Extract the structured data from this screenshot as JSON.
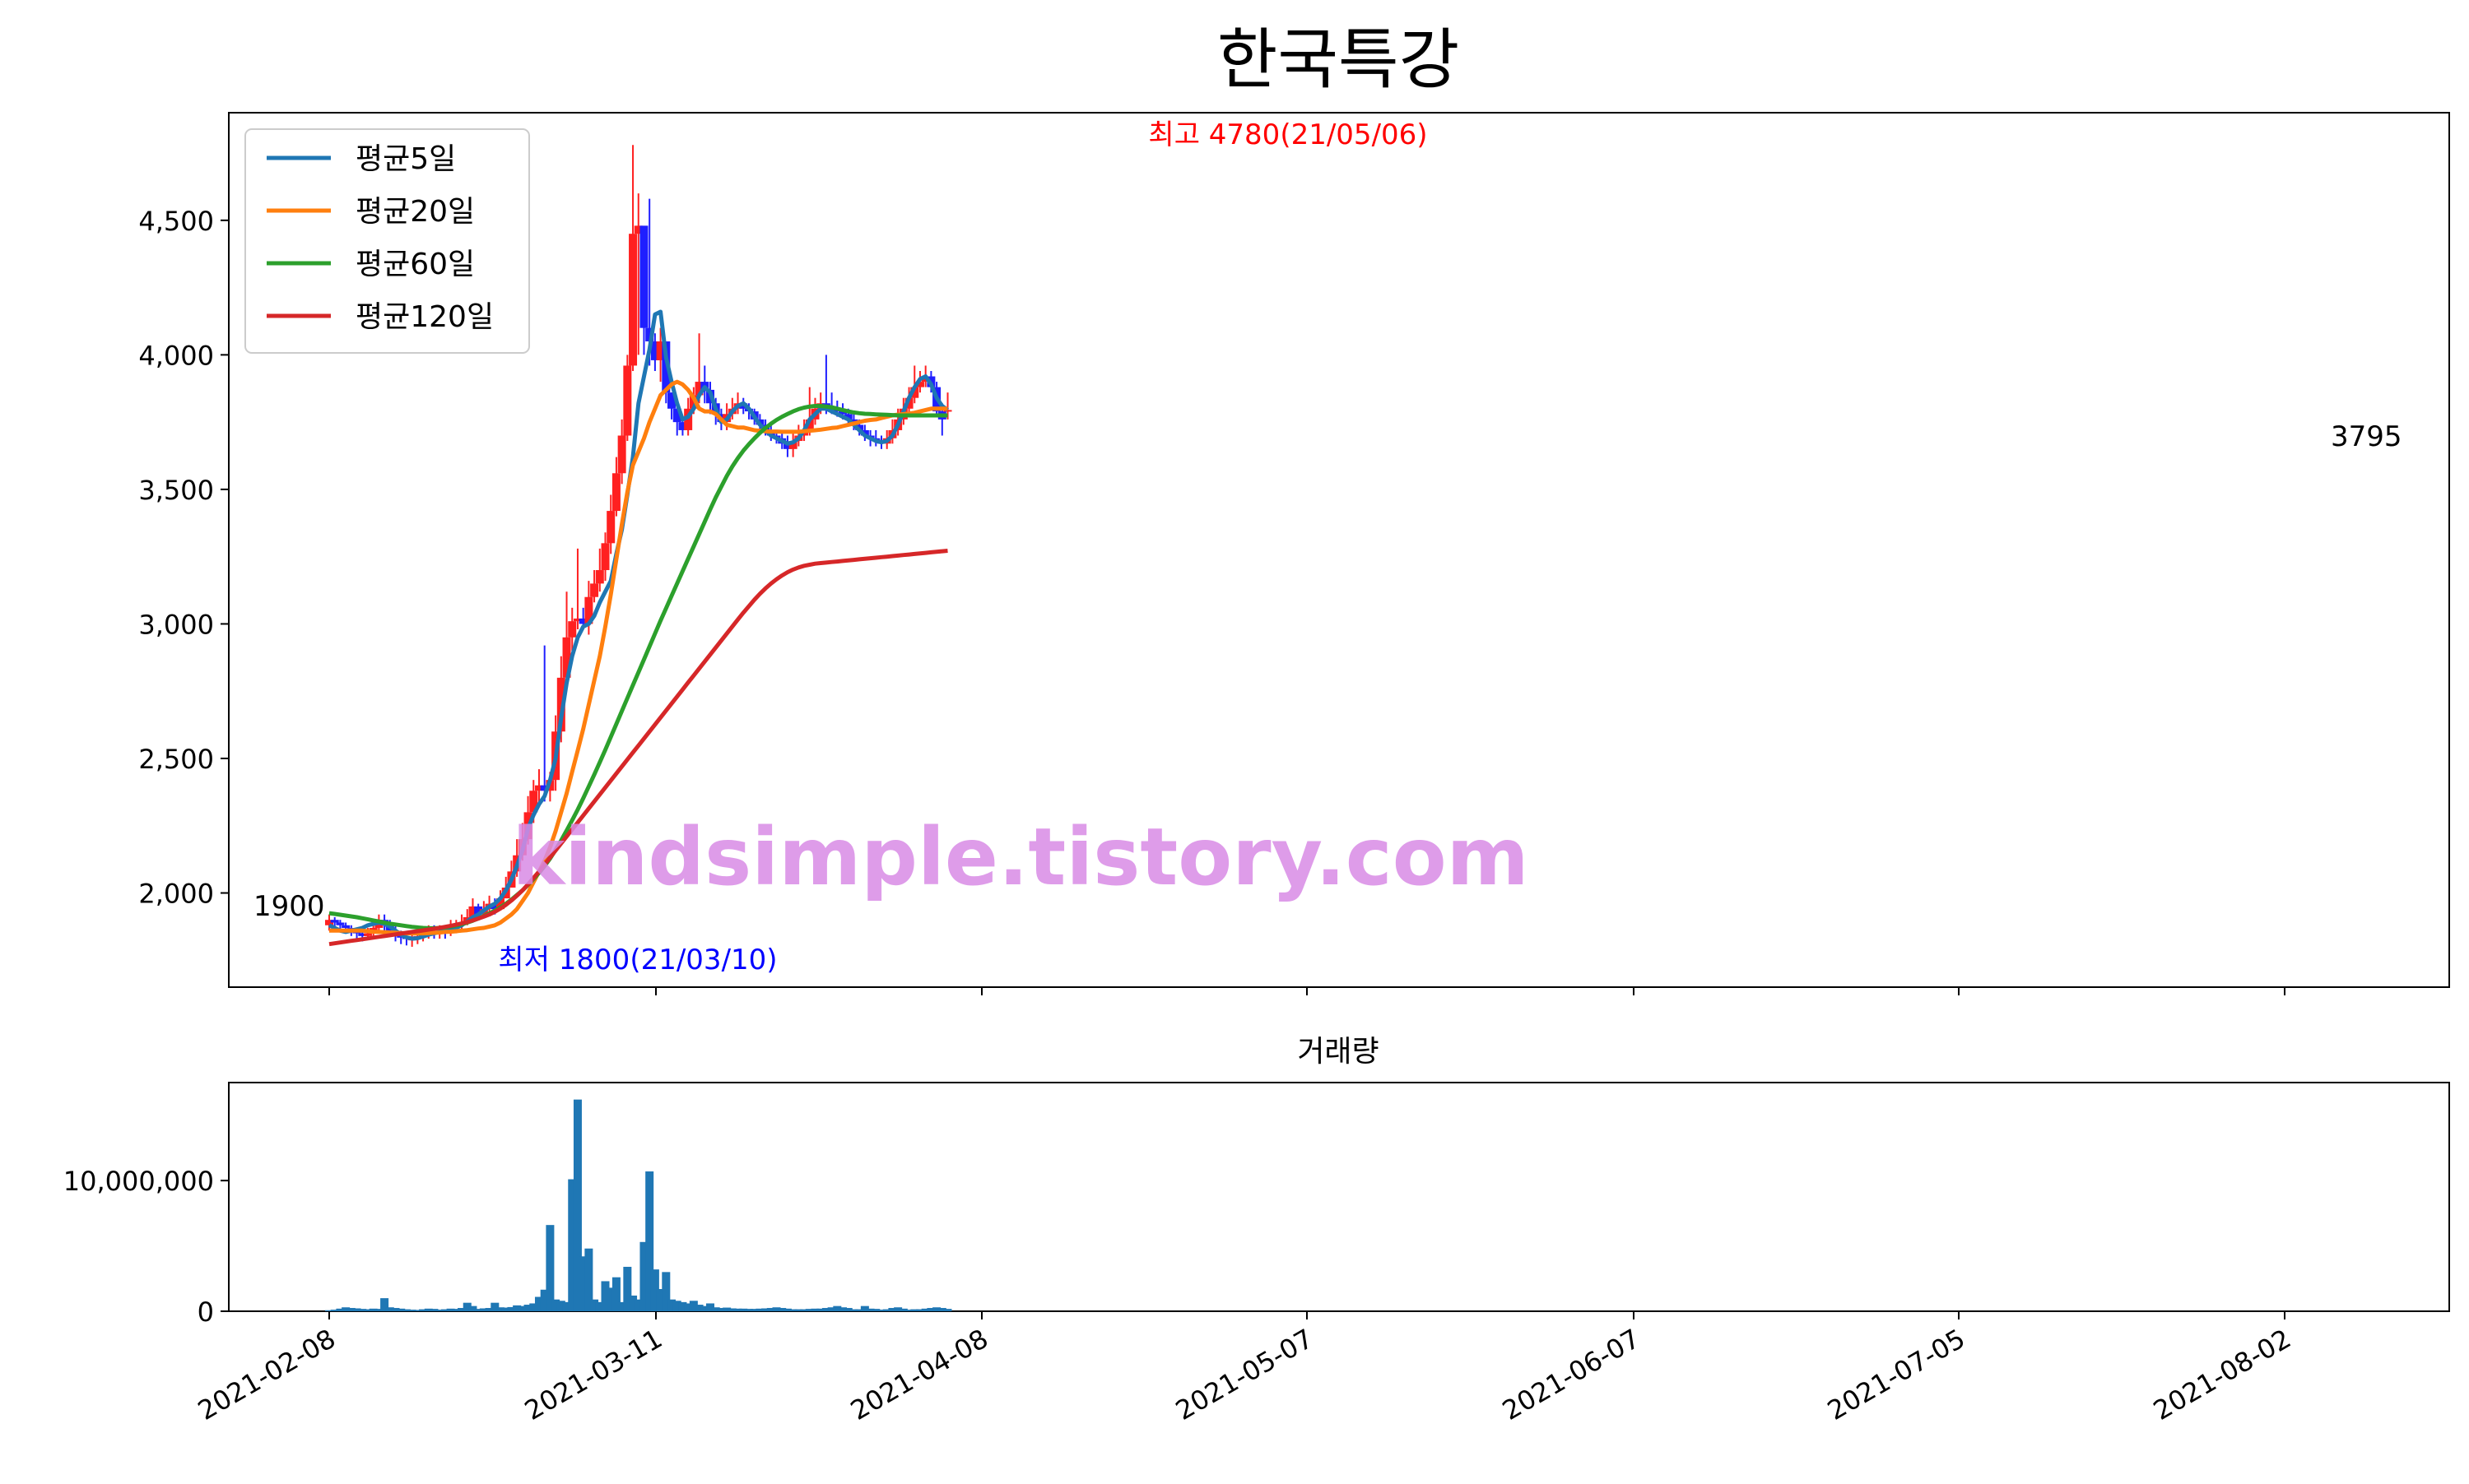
{
  "chart_data": {
    "type": "candlestick",
    "title": "한국특강",
    "legend": {
      "placement": "top-left",
      "entries": [
        {
          "name": "평균5일",
          "color": "#1f77b4"
        },
        {
          "name": "평균20일",
          "color": "#ff7f0e"
        },
        {
          "name": "평균60일",
          "color": "#2ca02c"
        },
        {
          "name": "평균120일",
          "color": "#d62728"
        }
      ]
    },
    "colors": {
      "up": "#ff2020",
      "down": "#1f1fff",
      "volume": "#1f77b4",
      "high_label": "#ff0000",
      "low_label": "#0000ff"
    },
    "price_axis": {
      "ylim": [
        1650,
        4900
      ],
      "ticks": [
        2000,
        2500,
        3000,
        3500,
        4000,
        4500
      ],
      "tick_labels": [
        "2,000",
        "2,500",
        "3,000",
        "3,500",
        "4,000",
        "4,500"
      ]
    },
    "date_ticks": [
      "2021-02-08",
      "2021-03-11",
      "2021-04-08",
      "2021-05-07",
      "2021-06-07",
      "2021-07-05",
      "2021-08-02"
    ],
    "annotations": {
      "high": "최고 4780(21/05/06)",
      "low": "최저 1800(21/03/10)",
      "first": "1900",
      "last": "3795"
    },
    "volume": {
      "title": "거래량",
      "ylim": [
        0,
        17500000
      ],
      "ticks": [
        0,
        10000000
      ],
      "tick_labels": [
        "0",
        "10,000,000"
      ]
    },
    "series": [
      {
        "name": "평균5일",
        "values": [
          1880,
          1870,
          1860,
          1855,
          1860,
          1865,
          1870,
          1880,
          1885,
          1890,
          1885,
          1875,
          1860,
          1845,
          1835,
          1830,
          1832,
          1838,
          1845,
          1850,
          1855,
          1860,
          1865,
          1870,
          1880,
          1895,
          1910,
          1920,
          1935,
          1950,
          1960,
          1980,
          2010,
          2050,
          2100,
          2160,
          2240,
          2290,
          2330,
          2360,
          2420,
          2500,
          2650,
          2780,
          2880,
          2950,
          2990,
          3000,
          3030,
          3080,
          3120,
          3160,
          3260,
          3350,
          3480,
          3620,
          3820,
          3920,
          4020,
          4150,
          4160,
          3990,
          3900,
          3820,
          3760,
          3770,
          3800,
          3850,
          3880,
          3860,
          3800,
          3750,
          3760,
          3790,
          3810,
          3820,
          3800,
          3770,
          3740,
          3720,
          3700,
          3690,
          3680,
          3670,
          3675,
          3690,
          3720,
          3760,
          3780,
          3800,
          3800,
          3790,
          3780,
          3770,
          3760,
          3740,
          3720,
          3700,
          3690,
          3680,
          3675,
          3680,
          3700,
          3740,
          3790,
          3840,
          3880,
          3910,
          3920,
          3890,
          3840,
          3810,
          3795
        ]
      },
      {
        "name": "평균20일",
        "values": [
          1860,
          1860,
          1860,
          1860,
          1860,
          1860,
          1860,
          1858,
          1856,
          1855,
          1854,
          1853,
          1852,
          1851,
          1850,
          1850,
          1850,
          1850,
          1851,
          1852,
          1853,
          1855,
          1856,
          1858,
          1860,
          1862,
          1865,
          1868,
          1870,
          1875,
          1880,
          1890,
          1905,
          1920,
          1940,
          1970,
          2000,
          2040,
          2080,
          2120,
          2170,
          2230,
          2300,
          2370,
          2450,
          2530,
          2610,
          2700,
          2790,
          2880,
          2990,
          3110,
          3240,
          3370,
          3490,
          3590,
          3640,
          3690,
          3750,
          3800,
          3850,
          3870,
          3890,
          3900,
          3890,
          3870,
          3840,
          3800,
          3790,
          3790,
          3780,
          3760,
          3740,
          3735,
          3730,
          3730,
          3725,
          3720,
          3718,
          3716,
          3715,
          3715,
          3714,
          3714,
          3714,
          3714,
          3716,
          3718,
          3720,
          3722,
          3725,
          3728,
          3730,
          3735,
          3740,
          3745,
          3750,
          3755,
          3758,
          3760,
          3765,
          3770,
          3775,
          3778,
          3780,
          3782,
          3785,
          3790,
          3795,
          3800,
          3800,
          3800,
          3800
        ]
      },
      {
        "name": "평균60일",
        "values": [
          1925,
          1922,
          1919,
          1916,
          1913,
          1910,
          1906,
          1902,
          1898,
          1894,
          1890,
          1886,
          1883,
          1880,
          1877,
          1874,
          1872,
          1870,
          1869,
          1869,
          1870,
          1872,
          1875,
          1879,
          1884,
          1890,
          1897,
          1905,
          1914,
          1924,
          1935,
          1947,
          1960,
          1975,
          1992,
          2010,
          2030,
          2052,
          2075,
          2100,
          2128,
          2160,
          2195,
          2232,
          2270,
          2310,
          2352,
          2396,
          2440,
          2486,
          2532,
          2580,
          2628,
          2676,
          2724,
          2772,
          2820,
          2868,
          2916,
          2964,
          3012,
          3058,
          3104,
          3150,
          3196,
          3242,
          3288,
          3334,
          3380,
          3426,
          3470,
          3510,
          3550,
          3585,
          3616,
          3644,
          3668,
          3690,
          3710,
          3728,
          3744,
          3758,
          3770,
          3780,
          3790,
          3798,
          3804,
          3808,
          3810,
          3810,
          3808,
          3805,
          3800,
          3795,
          3790,
          3786,
          3783,
          3781,
          3780,
          3779,
          3778,
          3777,
          3776,
          3775,
          3775,
          3775,
          3775,
          3775,
          3775,
          3775,
          3775,
          3775,
          3775
        ]
      },
      {
        "name": "평균120일",
        "values": [
          1810,
          1813,
          1816,
          1819,
          1822,
          1825,
          1828,
          1831,
          1834,
          1837,
          1840,
          1843,
          1846,
          1849,
          1852,
          1855,
          1858,
          1861,
          1864,
          1867,
          1870,
          1874,
          1878,
          1882,
          1887,
          1892,
          1898,
          1905,
          1912,
          1920,
          1930,
          1942,
          1956,
          1972,
          1990,
          2010,
          2032,
          2056,
          2080,
          2106,
          2132,
          2158,
          2184,
          2210,
          2236,
          2262,
          2288,
          2314,
          2340,
          2366,
          2392,
          2418,
          2444,
          2470,
          2496,
          2522,
          2548,
          2574,
          2600,
          2626,
          2652,
          2678,
          2704,
          2730,
          2756,
          2782,
          2808,
          2834,
          2860,
          2886,
          2912,
          2938,
          2964,
          2990,
          3016,
          3042,
          3066,
          3090,
          3112,
          3132,
          3150,
          3166,
          3180,
          3192,
          3202,
          3210,
          3216,
          3220,
          3224,
          3226,
          3228,
          3230,
          3232,
          3234,
          3236,
          3238,
          3240,
          3242,
          3244,
          3246,
          3248,
          3250,
          3252,
          3254,
          3256,
          3258,
          3260,
          3262,
          3264,
          3266,
          3268,
          3270,
          3272
        ]
      }
    ],
    "candles": {
      "open": [
        1880,
        1900,
        1890,
        1880,
        1870,
        1860,
        1850,
        1840,
        1850,
        1870,
        1900,
        1880,
        1860,
        1840,
        1835,
        1830,
        1830,
        1840,
        1850,
        1860,
        1850,
        1855,
        1850,
        1870,
        1880,
        1890,
        1910,
        1950,
        1920,
        1940,
        1960,
        1940,
        1980,
        2020,
        2080,
        2140,
        2200,
        2300,
        2380,
        2400,
        2380,
        2420,
        2600,
        2800,
        2950,
        3010,
        3020,
        3000,
        3100,
        3150,
        3200,
        3300,
        3420,
        3560,
        3700,
        3960,
        4450,
        4480,
        4100,
        4050,
        3980,
        4050,
        3860,
        3800,
        3750,
        3720,
        3800,
        3850,
        3900,
        3870,
        3820,
        3780,
        3750,
        3780,
        3800,
        3820,
        3800,
        3790,
        3760,
        3740,
        3720,
        3700,
        3690,
        3670,
        3650,
        3680,
        3700,
        3720,
        3760,
        3800,
        3820,
        3810,
        3800,
        3790,
        3780,
        3760,
        3740,
        3720,
        3700,
        3690,
        3680,
        3670,
        3690,
        3720,
        3760,
        3800,
        3840,
        3880,
        3900,
        3920,
        3880,
        3790,
        3795
      ],
      "close": [
        1900,
        1890,
        1880,
        1870,
        1860,
        1850,
        1840,
        1850,
        1870,
        1900,
        1880,
        1860,
        1840,
        1835,
        1830,
        1830,
        1840,
        1850,
        1860,
        1850,
        1855,
        1850,
        1870,
        1880,
        1890,
        1910,
        1950,
        1920,
        1940,
        1960,
        1940,
        1980,
        2020,
        2080,
        2140,
        2200,
        2300,
        2380,
        2400,
        2380,
        2420,
        2600,
        2800,
        2950,
        3010,
        3020,
        3000,
        3100,
        3150,
        3200,
        3300,
        3420,
        3560,
        3700,
        3960,
        4450,
        4480,
        4100,
        4050,
        3980,
        4050,
        3860,
        3800,
        3750,
        3720,
        3800,
        3850,
        3900,
        3870,
        3820,
        3780,
        3750,
        3780,
        3800,
        3820,
        3800,
        3790,
        3760,
        3740,
        3720,
        3700,
        3690,
        3670,
        3650,
        3680,
        3700,
        3720,
        3760,
        3800,
        3820,
        3810,
        3800,
        3790,
        3780,
        3760,
        3740,
        3720,
        3700,
        3690,
        3680,
        3670,
        3690,
        3720,
        3760,
        3800,
        3840,
        3880,
        3900,
        3920,
        3880,
        3790,
        3760,
        3795
      ],
      "high": [
        1920,
        1910,
        1900,
        1890,
        1880,
        1870,
        1860,
        1870,
        1890,
        1920,
        1920,
        1900,
        1880,
        1860,
        1850,
        1850,
        1860,
        1870,
        1880,
        1880,
        1880,
        1880,
        1900,
        1900,
        1920,
        1940,
        1980,
        1960,
        1970,
        1990,
        1980,
        2010,
        2060,
        2120,
        2200,
        2260,
        2360,
        2420,
        2460,
        2920,
        2450,
        2660,
        2880,
        3120,
        3060,
        3280,
        3060,
        3160,
        3200,
        3280,
        3340,
        3480,
        3620,
        3760,
        4000,
        4780,
        4600,
        4180,
        4580,
        4080,
        4100,
        3920,
        3860,
        3820,
        3760,
        3840,
        3880,
        4080,
        3960,
        3900,
        3840,
        3800,
        3820,
        3840,
        3860,
        3840,
        3820,
        3800,
        3780,
        3760,
        3740,
        3720,
        3720,
        3700,
        3720,
        3740,
        3760,
        3880,
        3840,
        3860,
        4000,
        3860,
        3830,
        3820,
        3800,
        3780,
        3760,
        3740,
        3720,
        3720,
        3700,
        3720,
        3760,
        3800,
        3840,
        3880,
        3960,
        3940,
        3960,
        3940,
        3900,
        3820,
        3860
      ],
      "low": [
        1860,
        1870,
        1860,
        1850,
        1840,
        1830,
        1820,
        1830,
        1840,
        1860,
        1860,
        1840,
        1820,
        1810,
        1805,
        1800,
        1810,
        1820,
        1830,
        1830,
        1830,
        1830,
        1840,
        1850,
        1860,
        1880,
        1900,
        1900,
        1910,
        1920,
        1920,
        1940,
        1980,
        2020,
        2060,
        2120,
        2180,
        2260,
        2320,
        2340,
        2340,
        2380,
        2560,
        2760,
        2900,
        2980,
        2980,
        2960,
        3080,
        3120,
        3160,
        3260,
        3400,
        3520,
        3680,
        3940,
        4000,
        4000,
        3960,
        3940,
        3900,
        3820,
        3760,
        3700,
        3700,
        3700,
        3780,
        3820,
        3820,
        3780,
        3740,
        3720,
        3720,
        3760,
        3780,
        3780,
        3760,
        3740,
        3720,
        3700,
        3680,
        3670,
        3650,
        3620,
        3620,
        3660,
        3680,
        3700,
        3740,
        3780,
        3780,
        3780,
        3770,
        3760,
        3740,
        3720,
        3700,
        3680,
        3660,
        3660,
        3650,
        3650,
        3670,
        3700,
        3740,
        3780,
        3820,
        3860,
        3880,
        3860,
        3780,
        3700,
        3760
      ]
    },
    "volume_values": [
      80000,
      120000,
      200000,
      300000,
      250000,
      220000,
      180000,
      150000,
      200000,
      180000,
      1000000,
      300000,
      250000,
      200000,
      150000,
      120000,
      100000,
      150000,
      200000,
      180000,
      120000,
      150000,
      200000,
      180000,
      250000,
      650000,
      400000,
      180000,
      220000,
      250000,
      650000,
      300000,
      280000,
      320000,
      450000,
      400000,
      500000,
      600000,
      1100000,
      1650000,
      6600000,
      900000,
      800000,
      700000,
      10100000,
      16200000,
      4200000,
      4800000,
      900000,
      700000,
      2300000,
      1800000,
      2600000,
      700000,
      3400000,
      1200000,
      900000,
      5300000,
      10700000,
      3200000,
      1700000,
      3000000,
      900000,
      800000,
      700000,
      600000,
      800000,
      500000,
      400000,
      600000,
      300000,
      250000,
      280000,
      220000,
      200000,
      200000,
      180000,
      180000,
      200000,
      220000,
      250000,
      300000,
      250000,
      200000,
      150000,
      150000,
      150000,
      180000,
      200000,
      200000,
      250000,
      300000,
      400000,
      300000,
      250000,
      150000,
      150000,
      400000,
      200000,
      180000,
      120000,
      150000,
      250000,
      300000,
      200000,
      120000,
      150000,
      150000,
      200000,
      250000,
      300000,
      250000,
      180000
    ]
  }
}
